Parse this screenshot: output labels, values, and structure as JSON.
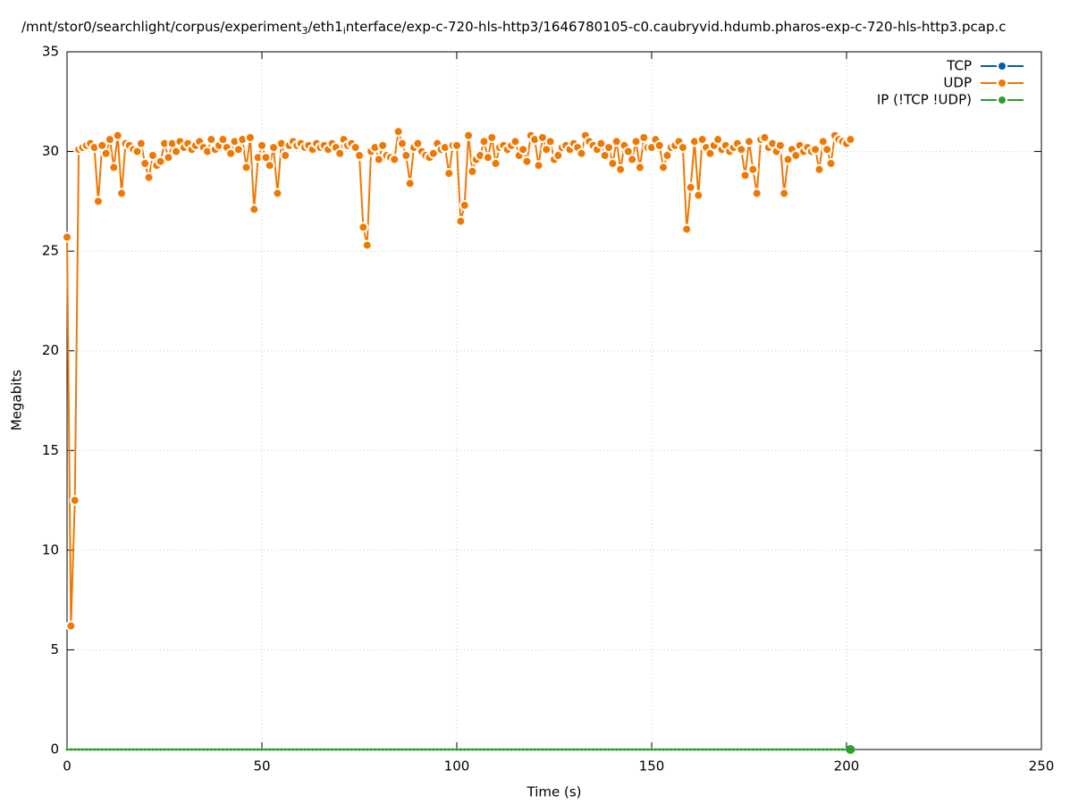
{
  "chart_data": {
    "type": "line",
    "title": [
      "/mnt/stor0/searchlight/corpus/experiment",
      "3",
      "/eth1",
      "i",
      "nterface/exp-c-720-hls-http3/1646780105-c0.caubryvid.hdumb.pharos-exp-c-720-hls-http3.pcap.c"
    ],
    "xlabel": "Time (s)",
    "ylabel": "Megabits",
    "xlim": [
      0,
      250
    ],
    "xticks": [
      0,
      50,
      100,
      150,
      200,
      250
    ],
    "ylim": [
      0,
      35
    ],
    "yticks": [
      0,
      5,
      10,
      15,
      20,
      25,
      30,
      35
    ],
    "grid": true,
    "legend": "top-right",
    "x": [
      0,
      1,
      2,
      3,
      4,
      5,
      6,
      7,
      8,
      9,
      10,
      11,
      12,
      13,
      14,
      15,
      16,
      17,
      18,
      19,
      20,
      21,
      22,
      23,
      24,
      25,
      26,
      27,
      28,
      29,
      30,
      31,
      32,
      33,
      34,
      35,
      36,
      37,
      38,
      39,
      40,
      41,
      42,
      43,
      44,
      45,
      46,
      47,
      48,
      49,
      50,
      51,
      52,
      53,
      54,
      55,
      56,
      57,
      58,
      59,
      60,
      61,
      62,
      63,
      64,
      65,
      66,
      67,
      68,
      69,
      70,
      71,
      72,
      73,
      74,
      75,
      76,
      77,
      78,
      79,
      80,
      81,
      82,
      83,
      84,
      85,
      86,
      87,
      88,
      89,
      90,
      91,
      92,
      93,
      94,
      95,
      96,
      97,
      98,
      99,
      100,
      101,
      102,
      103,
      104,
      105,
      106,
      107,
      108,
      109,
      110,
      111,
      112,
      113,
      114,
      115,
      116,
      117,
      118,
      119,
      120,
      121,
      122,
      123,
      124,
      125,
      126,
      127,
      128,
      129,
      130,
      131,
      132,
      133,
      134,
      135,
      136,
      137,
      138,
      139,
      140,
      141,
      142,
      143,
      144,
      145,
      146,
      147,
      148,
      149,
      150,
      151,
      152,
      153,
      154,
      155,
      156,
      157,
      158,
      159,
      160,
      161,
      162,
      163,
      164,
      165,
      166,
      167,
      168,
      169,
      170,
      171,
      172,
      173,
      174,
      175,
      176,
      177,
      178,
      179,
      180,
      181,
      182,
      183,
      184,
      185,
      186,
      187,
      188,
      189,
      190,
      191,
      192,
      193,
      194,
      195,
      196,
      197,
      198,
      199,
      200,
      201
    ],
    "series": [
      {
        "name": "TCP",
        "color": "#0060ad",
        "values": [
          null,
          null,
          null,
          null,
          null,
          null,
          null,
          null,
          null,
          null,
          null,
          null,
          null,
          null,
          null,
          null,
          null,
          null,
          null,
          null,
          null,
          null,
          null,
          null,
          null,
          null,
          null,
          null,
          null,
          null,
          null,
          null,
          null,
          null,
          null,
          null,
          null,
          null,
          null,
          null,
          null,
          null,
          null,
          null,
          null,
          null,
          null,
          null,
          null,
          null,
          null,
          null,
          null,
          null,
          null,
          null,
          null,
          null,
          null,
          null,
          null,
          null,
          null,
          null,
          null,
          null,
          null,
          null,
          null,
          null,
          null,
          null,
          null,
          null,
          null,
          null,
          null,
          null,
          null,
          null,
          null,
          null,
          null,
          null,
          null,
          null,
          null,
          null,
          null,
          null,
          null,
          null,
          null,
          null,
          null,
          null,
          null,
          null,
          null,
          null,
          null,
          null,
          null,
          null,
          null,
          null,
          null,
          null,
          null,
          null,
          null,
          null,
          null,
          null,
          null,
          null,
          null,
          null,
          null,
          null,
          null,
          null,
          null,
          null,
          null,
          null,
          null,
          null,
          null,
          null,
          null,
          null,
          null,
          null,
          null,
          null,
          null,
          null,
          null,
          null,
          null,
          null,
          null,
          null,
          null,
          null,
          null,
          null,
          null,
          null,
          null,
          null,
          null,
          null,
          null,
          null,
          null,
          null,
          null,
          null,
          null,
          null,
          null,
          null,
          null,
          null,
          null,
          null,
          null,
          null,
          null,
          null,
          null,
          null,
          null,
          null,
          null,
          null,
          null,
          null,
          null,
          null,
          null,
          null,
          null,
          null,
          null,
          null,
          null,
          null,
          null,
          null,
          null,
          null,
          null,
          null,
          null,
          null,
          null,
          null,
          null,
          null
        ]
      },
      {
        "name": "UDP",
        "color": "#f07800",
        "values": [
          25.7,
          6.2,
          12.5,
          30.1,
          30.2,
          30.3,
          30.4,
          30.2,
          27.5,
          30.3,
          29.9,
          30.6,
          29.2,
          30.8,
          27.9,
          30.4,
          30.3,
          30.1,
          30.0,
          30.4,
          29.4,
          28.7,
          29.8,
          29.3,
          29.5,
          30.4,
          29.7,
          30.4,
          30.0,
          30.5,
          30.2,
          30.4,
          30.1,
          30.3,
          30.5,
          30.2,
          30.0,
          30.6,
          30.1,
          30.3,
          30.6,
          30.2,
          29.9,
          30.5,
          30.1,
          30.6,
          29.2,
          30.7,
          27.1,
          29.7,
          30.3,
          29.7,
          29.3,
          30.2,
          27.9,
          30.4,
          29.8,
          30.3,
          30.5,
          30.3,
          30.4,
          30.2,
          30.3,
          30.1,
          30.4,
          30.2,
          30.3,
          30.1,
          30.4,
          30.2,
          29.9,
          30.6,
          30.3,
          30.4,
          30.2,
          29.8,
          26.2,
          25.3,
          30.0,
          30.2,
          29.6,
          30.3,
          29.8,
          29.7,
          29.6,
          31.0,
          30.4,
          29.8,
          28.4,
          30.2,
          30.4,
          30.0,
          29.8,
          29.7,
          29.9,
          30.4,
          30.1,
          30.2,
          28.9,
          30.3,
          30.3,
          26.5,
          27.3,
          30.8,
          29.0,
          29.6,
          29.8,
          30.5,
          29.7,
          30.7,
          29.4,
          30.2,
          30.3,
          30.1,
          30.3,
          30.5,
          29.8,
          30.1,
          29.5,
          30.8,
          30.6,
          29.3,
          30.7,
          30.1,
          30.5,
          29.6,
          29.8,
          30.2,
          30.3,
          30.1,
          30.4,
          30.2,
          29.9,
          30.8,
          30.5,
          30.3,
          30.1,
          30.4,
          29.8,
          30.2,
          29.4,
          30.5,
          29.1,
          30.3,
          30.0,
          29.6,
          30.5,
          29.2,
          30.7,
          30.2,
          30.2,
          30.6,
          30.3,
          29.2,
          29.8,
          30.2,
          30.3,
          30.5,
          30.2,
          26.1,
          28.2,
          30.5,
          27.8,
          30.6,
          30.2,
          29.9,
          30.3,
          30.6,
          30.1,
          30.3,
          30.0,
          30.2,
          30.4,
          30.1,
          28.8,
          30.5,
          29.1,
          27.9,
          30.6,
          30.7,
          30.2,
          30.4,
          30.0,
          30.3,
          27.9,
          29.6,
          30.1,
          29.8,
          30.3,
          30.0,
          30.2,
          30.0,
          30.1,
          29.1,
          30.5,
          30.1,
          29.4,
          30.8,
          30.6,
          30.5,
          30.4,
          30.6
        ]
      },
      {
        "name": "IP (!TCP  !UDP)",
        "color": "#2ca02c",
        "values": [
          0,
          0,
          0,
          0,
          0,
          0,
          0,
          0,
          0,
          0,
          0,
          0,
          0,
          0,
          0,
          0,
          0,
          0,
          0,
          0,
          0,
          0,
          0,
          0,
          0,
          0,
          0,
          0,
          0,
          0,
          0,
          0,
          0,
          0,
          0,
          0,
          0,
          0,
          0,
          0,
          0,
          0,
          0,
          0,
          0,
          0,
          0,
          0,
          0,
          0,
          0,
          0,
          0,
          0,
          0,
          0,
          0,
          0,
          0,
          0,
          0,
          0,
          0,
          0,
          0,
          0,
          0,
          0,
          0,
          0,
          0,
          0,
          0,
          0,
          0,
          0,
          0,
          0,
          0,
          0,
          0,
          0,
          0,
          0,
          0,
          0,
          0,
          0,
          0,
          0,
          0,
          0,
          0,
          0,
          0,
          0,
          0,
          0,
          0,
          0,
          0,
          0,
          0,
          0,
          0,
          0,
          0,
          0,
          0,
          0,
          0,
          0,
          0,
          0,
          0,
          0,
          0,
          0,
          0,
          0,
          0,
          0,
          0,
          0,
          0,
          0,
          0,
          0,
          0,
          0,
          0,
          0,
          0,
          0,
          0,
          0,
          0,
          0,
          0,
          0,
          0,
          0,
          0,
          0,
          0,
          0,
          0,
          0,
          0,
          0,
          0,
          0,
          0,
          0,
          0,
          0,
          0,
          0,
          0,
          0,
          0,
          0,
          0,
          0,
          0,
          0,
          0,
          0,
          0,
          0,
          0,
          0,
          0,
          0,
          0,
          0,
          0,
          0,
          0,
          0,
          0,
          0,
          0,
          0,
          0,
          0,
          0,
          0,
          0,
          0,
          0,
          0,
          0,
          0,
          0,
          0,
          0,
          0,
          0,
          0,
          0,
          0
        ]
      }
    ]
  }
}
